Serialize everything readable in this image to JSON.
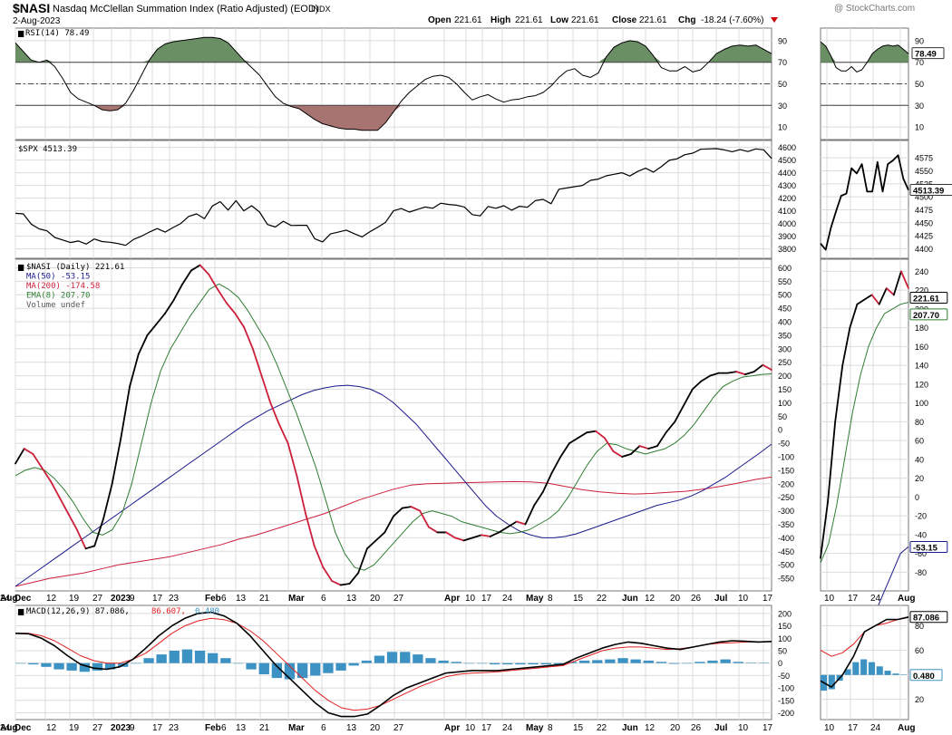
{
  "header": {
    "symbol": "$NASI",
    "name": "Nasdaq McClellan Summation Index (Ratio Adjusted) (EOD)",
    "exchange": "INDX",
    "date": "2-Aug-2023",
    "watermark": "@ StockCharts.com",
    "open_label": "Open",
    "open_value": "221.61",
    "high_label": "High",
    "high_value": "221.61",
    "low_label": "Low",
    "low_value": "221.61",
    "close_label": "Close",
    "close_value": "221.61",
    "chg_label": "Chg",
    "chg_value": "-18.24 (-7.60%)"
  },
  "colors": {
    "grid": "#dcdcdc",
    "rsi_up_fill": "#6b8f65",
    "rsi_down_fill": "#a87471",
    "ma50": "#1a1a8c",
    "ma200": "#cc1f3a",
    "ema8": "#2e7d32",
    "macd_signal": "#e02020",
    "histogram": "#3c92c2",
    "down_arrow": "#cc0000"
  },
  "x_axis_labels": [
    {
      "text": "Dec",
      "bold": true
    },
    {
      "text": "12",
      "bold": false
    },
    {
      "text": "19",
      "bold": false
    },
    {
      "text": "27",
      "bold": false
    },
    {
      "text": "2023",
      "bold": true
    },
    {
      "text": "9",
      "bold": false
    },
    {
      "text": "17",
      "bold": false
    },
    {
      "text": "23",
      "bold": false
    },
    {
      "text": "Feb",
      "bold": true
    },
    {
      "text": "6",
      "bold": false
    },
    {
      "text": "13",
      "bold": false
    },
    {
      "text": "21",
      "bold": false
    },
    {
      "text": "Mar",
      "bold": true
    },
    {
      "text": "6",
      "bold": false
    },
    {
      "text": "13",
      "bold": false
    },
    {
      "text": "20",
      "bold": false
    },
    {
      "text": "27",
      "bold": false
    },
    {
      "text": "Apr",
      "bold": true
    },
    {
      "text": "10",
      "bold": false
    },
    {
      "text": "17",
      "bold": false
    },
    {
      "text": "24",
      "bold": false
    },
    {
      "text": "May",
      "bold": true
    },
    {
      "text": "8",
      "bold": false
    },
    {
      "text": "15",
      "bold": false
    },
    {
      "text": "22",
      "bold": false
    },
    {
      "text": "Jun",
      "bold": true
    },
    {
      "text": "12",
      "bold": false
    },
    {
      "text": "20",
      "bold": false
    },
    {
      "text": "26",
      "bold": false
    },
    {
      "text": "Jul",
      "bold": true
    },
    {
      "text": "10",
      "bold": false
    },
    {
      "text": "17",
      "bold": false
    },
    {
      "text": "24",
      "bold": false
    },
    {
      "text": "Aug",
      "bold": true
    }
  ],
  "zoom_x_axis_labels": [
    {
      "text": "10",
      "bold": false
    },
    {
      "text": "17",
      "bold": false
    },
    {
      "text": "24",
      "bold": false
    },
    {
      "text": "Aug",
      "bold": true
    }
  ],
  "chart_data": [
    {
      "type": "line",
      "title": "RSI(14) 78.49",
      "legend": [
        {
          "text": "RSI(14) 78.49"
        }
      ],
      "y_ticks": [
        10,
        30,
        50,
        70,
        90
      ],
      "ylim": [
        0,
        100
      ],
      "levels": [
        30,
        50,
        70
      ],
      "last_value": "78.49",
      "series": [
        {
          "name": "RSI(14)",
          "values": [
            88,
            80,
            72,
            70,
            72,
            66,
            55,
            42,
            36,
            33,
            30,
            26,
            25,
            26,
            32,
            44,
            58,
            72,
            82,
            87,
            89,
            90,
            91,
            92,
            93,
            93,
            92,
            88,
            80,
            72,
            65,
            58,
            48,
            38,
            32,
            29,
            27,
            22,
            17,
            13,
            11,
            9,
            8,
            8,
            7,
            7,
            7,
            14,
            24,
            34,
            42,
            48,
            54,
            57,
            58,
            56,
            50,
            42,
            35,
            38,
            40,
            36,
            33,
            35,
            36,
            38,
            39,
            42,
            48,
            56,
            62,
            64,
            58,
            56,
            60,
            75,
            84,
            88,
            90,
            89,
            85,
            76,
            65,
            62,
            62,
            66,
            61,
            63,
            70,
            78,
            82,
            85,
            86,
            85,
            86,
            82,
            78
          ]
        }
      ]
    },
    {
      "type": "line",
      "title": "$SPX 4513.39",
      "legend": [
        {
          "text": "$SPX 4513.39"
        }
      ],
      "y_ticks": [
        3800,
        3900,
        4000,
        4100,
        4200,
        4300,
        4400,
        4500,
        4600
      ],
      "ylim": [
        3740,
        4640
      ],
      "zoom_y_ticks": [
        4400,
        4425,
        4450,
        4475,
        4500,
        4525,
        4550,
        4575
      ],
      "zoom_ylim": [
        4385,
        4605
      ],
      "last_value": "4513.39",
      "series": [
        {
          "name": "$SPX",
          "values": [
            4080,
            4076,
            3995,
            3958,
            3942,
            3890,
            3870,
            3850,
            3862,
            3838,
            3878,
            3858,
            3852,
            3842,
            3828,
            3874,
            3900,
            3932,
            3960,
            3932,
            3968,
            4000,
            4056,
            4076,
            4038,
            4138,
            4172,
            4106,
            4180,
            4100,
            4140,
            4090,
            3992,
            3972,
            4018,
            3984,
            3986,
            3986,
            3880,
            3855,
            3918,
            3932,
            3948,
            3920,
            3894,
            3935,
            3970,
            4010,
            4100,
            4118,
            4090,
            4110,
            4130,
            4120,
            4160,
            4150,
            4144,
            4130,
            4070,
            4060,
            4134,
            4120,
            4140,
            4105,
            4136,
            4128,
            4180,
            4190,
            4156,
            4270,
            4280,
            4290,
            4300,
            4340,
            4350,
            4376,
            4388,
            4400,
            4374,
            4410,
            4436,
            4405,
            4448,
            4498,
            4510,
            4542,
            4554,
            4585,
            4588,
            4590,
            4580,
            4566,
            4582,
            4567,
            4588,
            4581,
            4513
          ],
          "zoom_values": [
            4410,
            4398,
            4440,
            4472,
            4502,
            4506,
            4555,
            4545,
            4563,
            4510,
            4510,
            4567,
            4510,
            4563,
            4570,
            4580,
            4535,
            4513
          ]
        }
      ]
    },
    {
      "type": "line",
      "title": "$NASI (Daily) 221.61",
      "legend": [
        {
          "text": "$NASI (Daily) 221.61",
          "color": "#000000"
        },
        {
          "text": "MA(50) -53.15",
          "color": "#1a1a8c"
        },
        {
          "text": "MA(200) -174.58",
          "color": "#cc1f3a"
        },
        {
          "text": "EMA(8) 207.70",
          "color": "#2e7d32"
        },
        {
          "text": "Volume undef",
          "color": "#555555"
        }
      ],
      "y_ticks": [
        -550,
        -500,
        -450,
        -400,
        -350,
        -300,
        -250,
        -200,
        -150,
        -100,
        -50,
        0,
        50,
        100,
        150,
        200,
        250,
        300,
        350,
        400,
        450,
        500,
        550,
        600
      ],
      "ylim": [
        -590,
        625
      ],
      "zoom_y_ticks": [
        -80,
        -60,
        -40,
        -20,
        0,
        20,
        40,
        60,
        80,
        100,
        120,
        140,
        160,
        180,
        200,
        220,
        240
      ],
      "zoom_ylim": [
        -98,
        251
      ],
      "last_values": {
        "nasi": "221.61",
        "ema8": "207.70",
        "ma50": "-53.15"
      },
      "series": [
        {
          "name": "$NASI",
          "values": [
            -125,
            -70,
            -90,
            -140,
            -190,
            -250,
            -310,
            -370,
            -440,
            -430,
            -330,
            -200,
            -30,
            160,
            280,
            350,
            390,
            430,
            480,
            540,
            590,
            610,
            575,
            520,
            470,
            430,
            380,
            300,
            200,
            100,
            20,
            -50,
            -170,
            -310,
            -430,
            -510,
            -560,
            -575,
            -570,
            -530,
            -440,
            -410,
            -380,
            -320,
            -290,
            -285,
            -300,
            -360,
            -380,
            -380,
            -400,
            -410,
            -400,
            -390,
            -395,
            -380,
            -360,
            -340,
            -350,
            -280,
            -230,
            -160,
            -100,
            -50,
            -30,
            -10,
            -5,
            -30,
            -80,
            -100,
            -90,
            -60,
            -70,
            -60,
            -10,
            30,
            90,
            150,
            180,
            200,
            210,
            210,
            215,
            205,
            215,
            240,
            222
          ],
          "zoom_values": [
            -65,
            -5,
            80,
            140,
            180,
            205,
            210,
            215,
            205,
            222,
            215,
            240,
            222
          ]
        },
        {
          "name": "EMA(8)",
          "values": [
            -170,
            -150,
            -140,
            -150,
            -180,
            -220,
            -270,
            -330,
            -380,
            -390,
            -370,
            -310,
            -200,
            -50,
            100,
            220,
            300,
            360,
            420,
            470,
            520,
            540,
            520,
            490,
            440,
            380,
            320,
            240,
            150,
            60,
            -40,
            -140,
            -260,
            -380,
            -460,
            -510,
            -520,
            -500,
            -460,
            -420,
            -380,
            -340,
            -310,
            -300,
            -310,
            -320,
            -340,
            -350,
            -360,
            -370,
            -380,
            -385,
            -380,
            -370,
            -350,
            -330,
            -300,
            -250,
            -190,
            -130,
            -80,
            -50,
            -55,
            -70,
            -80,
            -90,
            -80,
            -70,
            -50,
            -20,
            20,
            70,
            120,
            160,
            180,
            195,
            200,
            205,
            207
          ],
          "zoom_values": [
            -70,
            -50,
            -10,
            40,
            90,
            130,
            160,
            180,
            195,
            200,
            205,
            207
          ]
        },
        {
          "name": "MA(50)",
          "values": [
            -580,
            -550,
            -520,
            -490,
            -460,
            -430,
            -400,
            -370,
            -340,
            -310,
            -280,
            -250,
            -220,
            -190,
            -160,
            -130,
            -100,
            -70,
            -40,
            -10,
            20,
            45,
            70,
            90,
            110,
            130,
            145,
            155,
            162,
            165,
            160,
            150,
            130,
            100,
            60,
            20,
            -30,
            -80,
            -130,
            -180,
            -230,
            -280,
            -320,
            -350,
            -375,
            -390,
            -400,
            -400,
            -395,
            -385,
            -370,
            -355,
            -340,
            -325,
            -310,
            -295,
            -280,
            -270,
            -260,
            -245,
            -225,
            -200,
            -175,
            -145,
            -115,
            -85,
            -53
          ],
          "zoom_values": [
            -140,
            -120,
            -100,
            -80,
            -60,
            -53
          ]
        },
        {
          "name": "MA(200)",
          "values": [
            -580,
            -565,
            -550,
            -540,
            -530,
            -515,
            -500,
            -490,
            -480,
            -470,
            -455,
            -440,
            -425,
            -405,
            -390,
            -370,
            -350,
            -330,
            -310,
            -285,
            -260,
            -240,
            -220,
            -205,
            -200,
            -198,
            -196,
            -195,
            -193,
            -192,
            -193,
            -198,
            -210,
            -222,
            -230,
            -235,
            -238,
            -236,
            -232,
            -228,
            -220,
            -210,
            -198,
            -185,
            -175
          ]
        }
      ]
    },
    {
      "type": "line",
      "title": "MACD(12,26,9) 87.086, 86.607, 0.480",
      "legend": [
        {
          "text": "MACD(12,26,9) 87.086,",
          "color": "#000000"
        },
        {
          "text": "86.607,",
          "color": "#e02020"
        },
        {
          "text": "0.480",
          "color": "#3c92c2"
        }
      ],
      "y_ticks": [
        -200,
        -150,
        -100,
        -50,
        0,
        50,
        100,
        150,
        200
      ],
      "ylim": [
        -220,
        225
      ],
      "zoom_y_ticks": [
        20,
        40,
        60,
        80
      ],
      "zoom_ylim": [
        5,
        95
      ],
      "last_values": {
        "macd": "87.086",
        "signal": "86.607",
        "histogram": "0.480"
      },
      "series": [
        {
          "name": "MACD",
          "values": [
            120,
            118,
            100,
            70,
            30,
            -5,
            -20,
            -25,
            -15,
            15,
            60,
            110,
            150,
            180,
            200,
            205,
            190,
            160,
            110,
            50,
            -10,
            -60,
            -110,
            -160,
            -200,
            -215,
            -215,
            -205,
            -170,
            -130,
            -100,
            -80,
            -60,
            -40,
            -35,
            -30,
            -30,
            -30,
            -25,
            -20,
            -15,
            -10,
            -5,
            20,
            40,
            60,
            75,
            85,
            80,
            70,
            60,
            55,
            65,
            75,
            85,
            90,
            88,
            85,
            87
          ],
          "zoom_values": [
            35,
            30,
            40,
            55,
            75,
            80,
            85,
            85,
            87
          ]
        },
        {
          "name": "Signal",
          "values": [
            120,
            120,
            110,
            90,
            60,
            30,
            10,
            0,
            0,
            15,
            40,
            80,
            120,
            150,
            170,
            180,
            175,
            160,
            130,
            90,
            40,
            -10,
            -60,
            -110,
            -150,
            -180,
            -190,
            -185,
            -170,
            -145,
            -120,
            -95,
            -75,
            -55,
            -45,
            -40,
            -38,
            -35,
            -30,
            -25,
            -20,
            -15,
            -10,
            10,
            30,
            50,
            60,
            65,
            65,
            60,
            55,
            58,
            65,
            75,
            80,
            82,
            85,
            86,
            86.6
          ],
          "zoom_values": [
            60,
            55,
            58,
            65,
            75,
            80,
            82,
            85,
            86.6
          ]
        },
        {
          "name": "Histogram",
          "values": [
            0,
            -5,
            -15,
            -25,
            -30,
            -35,
            -30,
            -25,
            -15,
            0,
            20,
            35,
            50,
            55,
            50,
            40,
            20,
            0,
            -25,
            -45,
            -60,
            -65,
            -60,
            -50,
            -40,
            -30,
            -10,
            10,
            30,
            45,
            45,
            35,
            20,
            10,
            5,
            0,
            0,
            -5,
            -5,
            -5,
            -5,
            -5,
            -5,
            5,
            10,
            12,
            15,
            20,
            15,
            10,
            5,
            -3,
            0,
            5,
            10,
            15,
            5,
            2,
            0.5
          ],
          "zoom_values": [
            -22,
            -20,
            -8,
            8,
            18,
            22,
            18,
            12,
            6,
            2,
            0.5
          ]
        }
      ]
    }
  ]
}
